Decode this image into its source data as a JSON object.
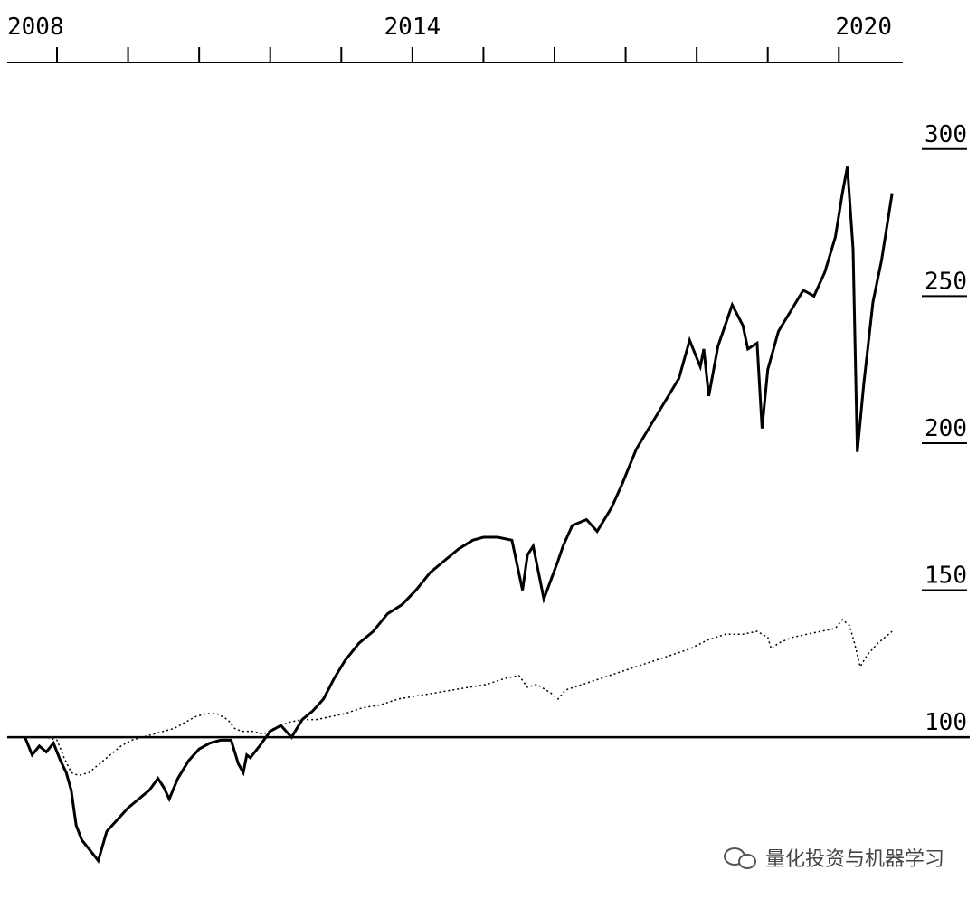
{
  "chart_data": {
    "type": "line",
    "x_ticks": [
      "2008",
      "2014",
      "2020"
    ],
    "y_ticks": [
      100,
      150,
      200,
      250,
      300
    ],
    "xlim": [
      2008.3,
      2020.9
    ],
    "ylim": [
      45,
      323
    ],
    "reference_line": 100,
    "series": [
      {
        "style": "solid",
        "x": [
          2008.55,
          2008.65,
          2008.75,
          2008.85,
          2008.95,
          2009.05,
          2009.13,
          2009.2,
          2009.27,
          2009.35,
          2009.45,
          2009.58,
          2009.7,
          2009.85,
          2010.0,
          2010.15,
          2010.3,
          2010.42,
          2010.5,
          2010.58,
          2010.7,
          2010.85,
          2011.0,
          2011.15,
          2011.3,
          2011.45,
          2011.55,
          2011.62,
          2011.67,
          2011.72,
          2011.85,
          2012.0,
          2012.15,
          2012.3,
          2012.45,
          2012.6,
          2012.75,
          2012.9,
          2013.05,
          2013.25,
          2013.45,
          2013.65,
          2013.85,
          2014.05,
          2014.25,
          2014.45,
          2014.65,
          2014.85,
          2015.0,
          2015.2,
          2015.4,
          2015.55,
          2015.62,
          2015.7,
          2015.85,
          2016.05,
          2016.12,
          2016.25,
          2016.45,
          2016.6,
          2016.8,
          2016.95,
          2017.15,
          2017.35,
          2017.55,
          2017.75,
          2017.9,
          2018.05,
          2018.1,
          2018.17,
          2018.3,
          2018.5,
          2018.65,
          2018.72,
          2018.85,
          2018.92,
          2019.0,
          2019.15,
          2019.35,
          2019.5,
          2019.65,
          2019.8,
          2019.95,
          2020.05,
          2020.12,
          2020.2,
          2020.26,
          2020.35,
          2020.48,
          2020.6,
          2020.75
        ],
        "y": [
          100,
          94,
          97,
          95,
          98,
          92,
          88,
          82,
          70,
          65,
          62,
          58,
          68,
          72,
          76,
          79,
          82,
          86,
          83,
          79,
          86,
          92,
          96,
          98,
          99,
          99,
          91,
          88,
          94,
          93,
          97,
          102,
          104,
          100,
          106,
          109,
          113,
          120,
          126,
          132,
          136,
          142,
          145,
          150,
          156,
          160,
          164,
          167,
          168,
          168,
          167,
          150,
          162,
          165,
          147,
          160,
          165,
          172,
          174,
          170,
          178,
          186,
          198,
          206,
          214,
          222,
          235,
          226,
          232,
          216,
          233,
          247,
          240,
          232,
          234,
          205,
          225,
          238,
          246,
          252,
          250,
          258,
          270,
          285,
          294,
          266,
          197,
          220,
          248,
          262,
          285
        ]
      },
      {
        "style": "dotted",
        "x": [
          2008.55,
          2008.7,
          2008.85,
          2009.0,
          2009.1,
          2009.2,
          2009.3,
          2009.45,
          2009.6,
          2009.75,
          2009.9,
          2010.05,
          2010.2,
          2010.35,
          2010.5,
          2010.65,
          2010.8,
          2010.95,
          2011.1,
          2011.25,
          2011.4,
          2011.5,
          2011.6,
          2011.75,
          2011.9,
          2012.05,
          2012.25,
          2012.45,
          2012.65,
          2012.85,
          2013.05,
          2013.3,
          2013.55,
          2013.8,
          2014.05,
          2014.3,
          2014.55,
          2014.8,
          2015.05,
          2015.3,
          2015.5,
          2015.62,
          2015.75,
          2015.95,
          2016.05,
          2016.15,
          2016.4,
          2016.65,
          2016.9,
          2017.15,
          2017.4,
          2017.65,
          2017.9,
          2018.15,
          2018.4,
          2018.65,
          2018.85,
          2019.0,
          2019.05,
          2019.15,
          2019.35,
          2019.55,
          2019.75,
          2019.95,
          2020.05,
          2020.15,
          2020.22,
          2020.3,
          2020.4,
          2020.55,
          2020.75
        ],
        "y": [
          100,
          100,
          100,
          99,
          93,
          88,
          87,
          88,
          91,
          94,
          97,
          99,
          100,
          101,
          102,
          103,
          105,
          107,
          108,
          108,
          106,
          103,
          102,
          102,
          101,
          103,
          105,
          106,
          106,
          107,
          108,
          110,
          111,
          113,
          114,
          115,
          116,
          117,
          118,
          120,
          121,
          117,
          118,
          115,
          113,
          116,
          118,
          120,
          122,
          124,
          126,
          128,
          130,
          133,
          135,
          135,
          136,
          134,
          130,
          132,
          134,
          135,
          136,
          137,
          140,
          138,
          132,
          124,
          128,
          132,
          136
        ]
      }
    ]
  },
  "watermark": {
    "icon": "wechat-icon",
    "text": "量化投资与机器学习"
  }
}
